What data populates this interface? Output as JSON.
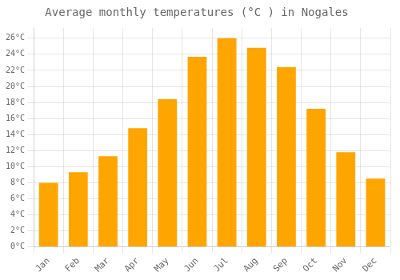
{
  "chart_data": {
    "type": "bar",
    "title": "Average monthly temperatures (°C ) in Nogales",
    "categories": [
      "Jan",
      "Feb",
      "Mar",
      "Apr",
      "May",
      "Jun",
      "Jul",
      "Aug",
      "Sep",
      "Oct",
      "Nov",
      "Dec"
    ],
    "values": [
      8.0,
      9.3,
      11.3,
      14.8,
      18.4,
      23.7,
      26.0,
      24.8,
      22.4,
      17.2,
      11.8,
      8.5
    ],
    "color": "#FFA500",
    "ylim": [
      0,
      27.3
    ],
    "yticks": [
      {
        "value": 0,
        "label": "0°C"
      },
      {
        "value": 2,
        "label": "2°C"
      },
      {
        "value": 4,
        "label": "4°C"
      },
      {
        "value": 6,
        "label": "6°C"
      },
      {
        "value": 8,
        "label": "8°C"
      },
      {
        "value": 10,
        "label": "10°C"
      },
      {
        "value": 12,
        "label": "12°C"
      },
      {
        "value": 14,
        "label": "14°C"
      },
      {
        "value": 16,
        "label": "16°C"
      },
      {
        "value": 18,
        "label": "18°C"
      },
      {
        "value": 20,
        "label": "20°C"
      },
      {
        "value": 22,
        "label": "22°C"
      },
      {
        "value": 24,
        "label": "24°C"
      },
      {
        "value": 26,
        "label": "26°C"
      }
    ],
    "grid": true
  }
}
